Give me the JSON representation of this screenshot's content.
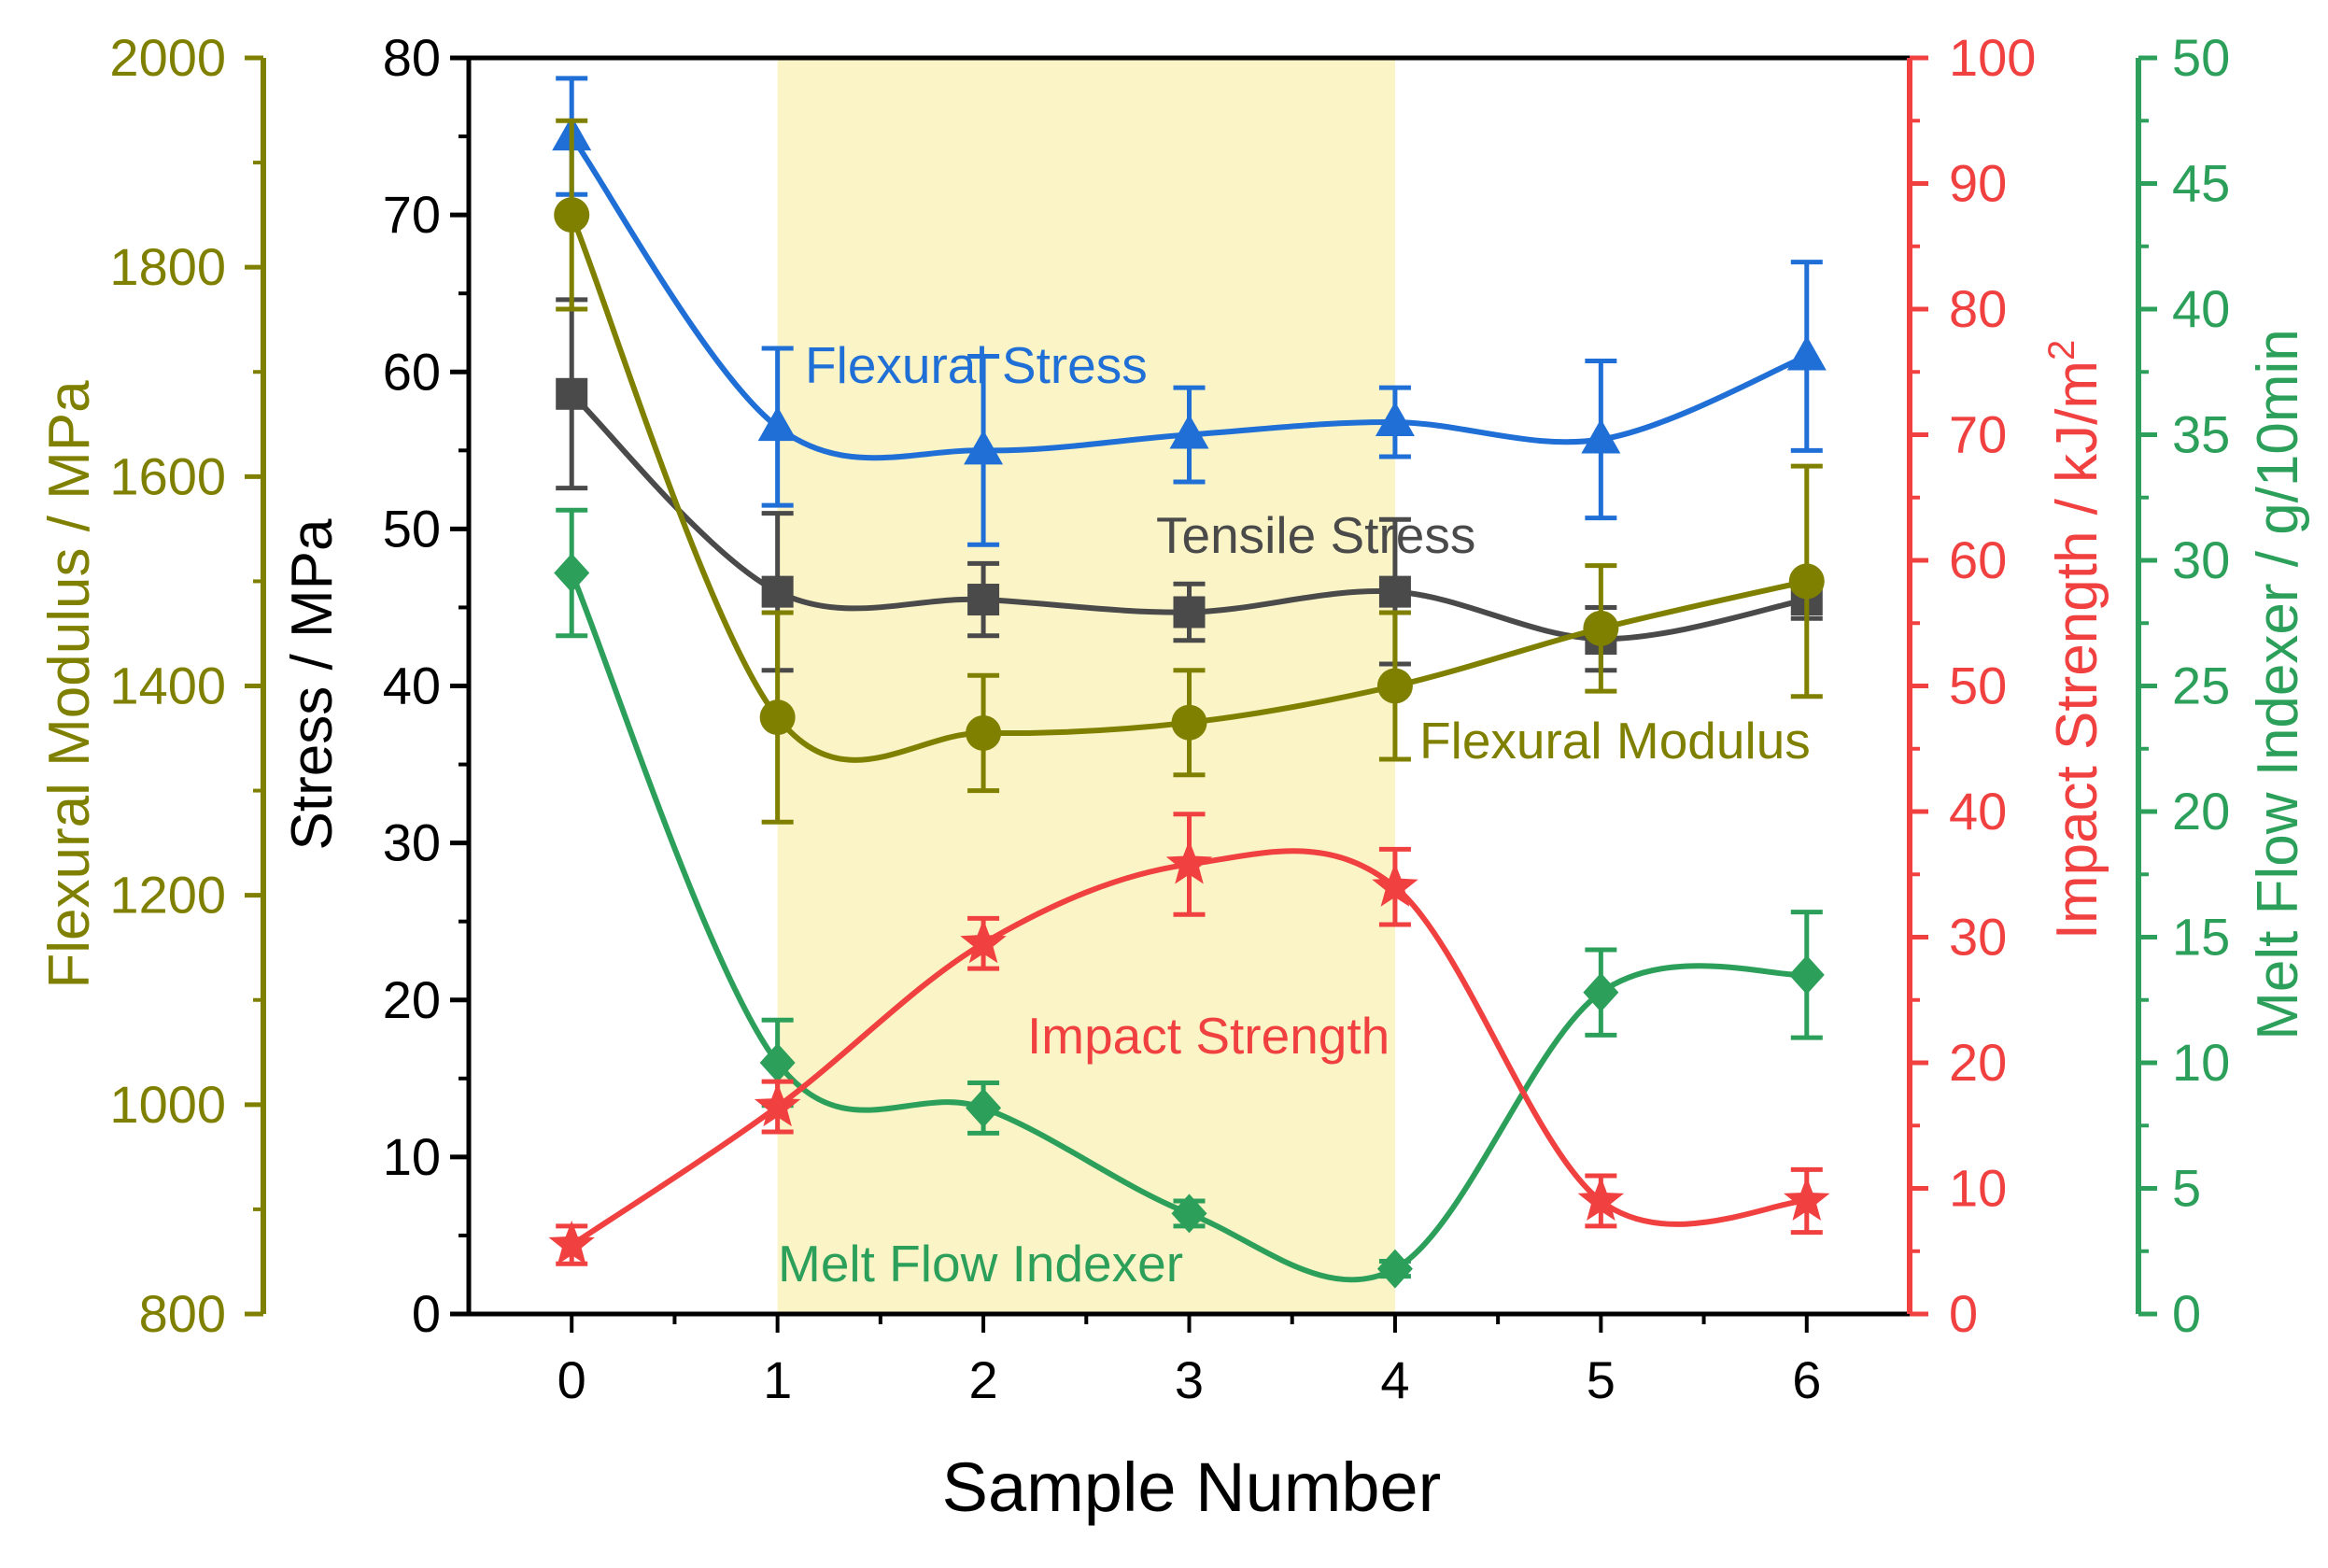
{
  "chart_data": {
    "type": "line",
    "xlabel": "Sample Number",
    "x": [
      0,
      1,
      2,
      3,
      4,
      5,
      6
    ],
    "x_ticks": [
      "0",
      "1",
      "2",
      "3",
      "4",
      "5",
      "6"
    ],
    "xlim": [
      -0.5,
      6.5
    ],
    "highlight_range": [
      1,
      4
    ],
    "axes": {
      "modulus": {
        "title": "Flexural Modulus / MPa",
        "range": [
          800,
          2000
        ],
        "ticks": [
          "800",
          "1000",
          "1200",
          "1400",
          "1600",
          "1800",
          "2000"
        ],
        "color": "#808000"
      },
      "stress": {
        "title": "Stress / MPa",
        "range": [
          0,
          80
        ],
        "ticks": [
          "0",
          "10",
          "20",
          "30",
          "40",
          "50",
          "60",
          "70",
          "80"
        ],
        "color": "#000000"
      },
      "impact": {
        "title_main": "Impact Strength / kJ/m",
        "title_sup": "2",
        "range": [
          0,
          100
        ],
        "ticks": [
          "0",
          "10",
          "20",
          "30",
          "40",
          "50",
          "60",
          "70",
          "80",
          "90",
          "100"
        ],
        "color": "#f04040"
      },
      "mfi": {
        "title": "Melt Flow Indexer / g/10min",
        "range": [
          0,
          50
        ],
        "ticks": [
          "0",
          "5",
          "10",
          "15",
          "20",
          "25",
          "30",
          "35",
          "40",
          "45",
          "50"
        ],
        "color": "#2ca05a"
      }
    },
    "series": [
      {
        "name": "Flexural Stress",
        "axis": "stress",
        "color": "#1f6fd6",
        "marker": "triangle",
        "values": [
          75,
          56.5,
          55,
          56,
          56.8,
          55.7,
          61
        ],
        "errors": [
          3.7,
          5,
          6,
          3,
          2.2,
          5,
          6
        ]
      },
      {
        "name": "Tensile Stress",
        "axis": "stress",
        "color": "#4a4a4a",
        "marker": "square",
        "values": [
          58.6,
          46,
          45.5,
          44.7,
          46,
          43,
          45.5
        ],
        "errors": [
          6,
          5,
          2.3,
          1.8,
          4.6,
          2,
          1.2
        ]
      },
      {
        "name": "Flexural Modulus",
        "axis": "modulus",
        "color": "#808000",
        "marker": "circle",
        "values": [
          1850,
          1370,
          1355,
          1365,
          1400,
          1455,
          1500
        ],
        "errors": [
          90,
          100,
          55,
          50,
          70,
          60,
          110
        ]
      },
      {
        "name": "Impact Strength",
        "axis": "impact",
        "color": "#f04040",
        "marker": "star",
        "values": [
          5.5,
          16.5,
          29.5,
          35.8,
          34,
          9,
          9
        ],
        "errors": [
          1.5,
          2,
          2,
          4,
          3,
          2,
          2.5
        ]
      },
      {
        "name": "Melt Flow Indexer",
        "axis": "mfi",
        "color": "#2ca05a",
        "marker": "diamond",
        "values": [
          29.5,
          10,
          8.2,
          4,
          1.8,
          12.8,
          13.5
        ],
        "errors": [
          2.5,
          1.7,
          1,
          0.5,
          0.3,
          1.7,
          2.5
        ]
      }
    ]
  }
}
